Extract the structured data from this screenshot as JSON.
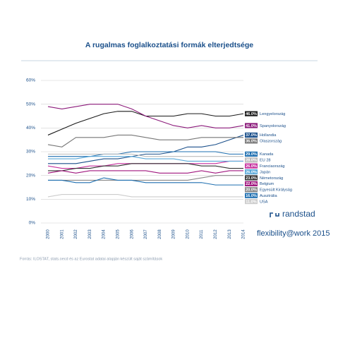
{
  "chart_data": {
    "type": "line",
    "title": "A rugalmas foglalkoztatási formák elterjedtsége",
    "categories": [
      "2000",
      "2001",
      "2002",
      "2003",
      "2004",
      "2005",
      "2006",
      "2007",
      "2008",
      "2009",
      "2010",
      "2011",
      "2012",
      "2013",
      "2014"
    ],
    "ylim": [
      0,
      60
    ],
    "yticks": [
      {
        "value": 0,
        "label": "0%"
      },
      {
        "value": 10,
        "label": "10%"
      },
      {
        "value": 20,
        "label": "20%"
      },
      {
        "value": 30,
        "label": "30%"
      },
      {
        "value": 40,
        "label": "40%"
      },
      {
        "value": 50,
        "label": "50%"
      },
      {
        "value": 60,
        "label": "60%"
      }
    ],
    "grid": true,
    "series": [
      {
        "name": "Lengyelország",
        "color": "#1a1a1a",
        "values": [
          37,
          39.5,
          42,
          44,
          46,
          47,
          47,
          45,
          45,
          45,
          46,
          46,
          45,
          45,
          46
        ],
        "value_labels": [
          "46.0%"
        ]
      },
      {
        "name": "Spanyolország",
        "color": "#8b1a7a",
        "values": [
          49,
          48,
          49,
          50,
          50,
          50,
          48,
          45,
          43,
          41,
          40,
          41,
          40,
          40,
          41
        ],
        "value_labels": [
          "41.0%"
        ]
      },
      {
        "name": "Hollandia",
        "color": "#1a4f8a",
        "values": [
          25,
          25,
          25,
          26,
          27,
          27,
          28,
          29,
          29,
          30,
          32,
          32,
          33,
          35,
          37
        ],
        "value_labels": [
          "37.0%"
        ]
      },
      {
        "name": "Olaszország",
        "color": "#777777",
        "values": [
          33,
          32,
          36,
          36,
          36,
          37,
          37,
          36,
          35,
          35,
          35,
          36,
          36,
          36,
          36
        ],
        "value_labels": [
          "36.0%"
        ]
      },
      {
        "name": "Kanada",
        "color": "#1e6fb0",
        "values": [
          28,
          28,
          28,
          28,
          29,
          29,
          30,
          30,
          30,
          30,
          30,
          30,
          30,
          29,
          29
        ],
        "value_labels": [
          "29.0%"
        ]
      },
      {
        "name": "EU 28",
        "color": "#bbbbbb",
        "values": [
          29,
          29,
          29,
          29,
          29,
          29,
          29,
          28,
          28,
          28,
          28,
          28,
          28,
          28,
          28
        ],
        "value_labels": [
          "28.0%"
        ]
      },
      {
        "name": "Franciaország",
        "color": "#c62f9d",
        "values": [
          24,
          23,
          23,
          24,
          24,
          25,
          25,
          25,
          25,
          25,
          25,
          25,
          25,
          26,
          26
        ],
        "value_labels": [
          "26.0%"
        ]
      },
      {
        "name": "Japán",
        "color": "#5aa8d8",
        "values": [
          27,
          27,
          27,
          28,
          28,
          28,
          28,
          27,
          27,
          27,
          26,
          26,
          26,
          26,
          26
        ],
        "value_labels": [
          "26.0%"
        ]
      },
      {
        "name": "Németország",
        "color": "#333333",
        "values": [
          22,
          22,
          23,
          23,
          24,
          24,
          25,
          25,
          25,
          25,
          25,
          24,
          24,
          23,
          23
        ],
        "value_labels": [
          "23.0%"
        ]
      },
      {
        "name": "Belgium",
        "color": "#a0167e",
        "values": [
          21,
          22,
          21,
          22,
          22,
          22,
          22,
          22,
          21,
          21,
          21,
          22,
          21,
          22,
          22
        ],
        "value_labels": [
          "22.0%"
        ]
      },
      {
        "name": "Egyesült Királyság",
        "color": "#888888",
        "values": [
          18,
          18,
          18,
          18,
          18,
          18,
          18,
          18,
          18,
          18,
          18,
          19,
          20,
          20,
          20
        ],
        "value_labels": [
          "20.0%"
        ]
      },
      {
        "name": "Ausztrália",
        "color": "#1e6fb0",
        "values": [
          18,
          18,
          17,
          17,
          19,
          18,
          18,
          17,
          17,
          17,
          17,
          17,
          16,
          16,
          16
        ],
        "value_labels": [
          "16.0%"
        ]
      },
      {
        "name": "USA",
        "color": "#cccccc",
        "values": [
          11,
          12,
          12,
          12,
          12,
          12,
          11,
          11,
          11,
          11,
          11,
          11,
          11,
          11,
          11
        ],
        "value_labels": [
          "11.0%"
        ]
      }
    ],
    "brand": "randstad",
    "report": "flexibility@work 2015",
    "source": "Forrás: ILOSTAT, stats.oecd és az Eurostat adatai alapján készült saját számítások"
  }
}
